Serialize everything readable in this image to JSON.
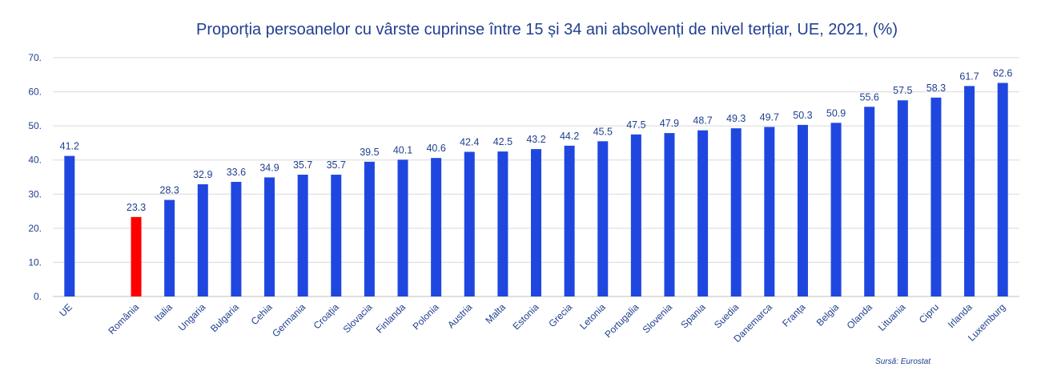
{
  "chart_data": {
    "type": "bar",
    "title": "Proporția persoanelor cu vârste cuprinse între 15 și 34 ani absolvenți de nivel terțiar, UE, 2021, (%)",
    "source": "Sursă: Eurostat",
    "ylim": [
      0,
      70
    ],
    "yticks": [
      "0.",
      "10.",
      "20.",
      "30.",
      "40.",
      "50.",
      "60.",
      "70."
    ],
    "grid": true,
    "categories": [
      "UE",
      "",
      "România",
      "Italia",
      "Ungaria",
      "Bulgaria",
      "Cehia",
      "Germania",
      "Croația",
      "Slovacia",
      "Finlanda",
      "Polonia",
      "Austria",
      "Malta",
      "Estonia",
      "Grecia",
      "Letonia",
      "Portugalia",
      "Slovenia",
      "Spania",
      "Suedia",
      "Danemarca",
      "Franța",
      "Belgia",
      "Olanda",
      "Lituania",
      "Cipru",
      "Irlanda",
      "Luxemburg"
    ],
    "values": [
      41.2,
      null,
      23.3,
      28.3,
      32.9,
      33.6,
      34.9,
      35.7,
      35.7,
      39.5,
      40.1,
      40.6,
      42.4,
      42.5,
      43.2,
      44.2,
      45.5,
      47.5,
      47.9,
      48.7,
      49.3,
      49.7,
      50.3,
      50.9,
      55.6,
      57.5,
      58.3,
      61.7,
      62.6
    ],
    "value_labels": [
      "41.2",
      "",
      "23.3",
      "28.3",
      "32.9",
      "33.6",
      "34.9",
      "35.7",
      "35.7",
      "39.5",
      "40.1",
      "40.6",
      "42.4",
      "42.5",
      "43.2",
      "44.2",
      "45.5",
      "47.5",
      "47.9",
      "48.7",
      "49.3",
      "49.7",
      "50.3",
      "50.9",
      "55.6",
      "57.5",
      "58.3",
      "61.7",
      "62.6"
    ],
    "colors": {
      "default": "#1f47e0",
      "highlight": "#ff0000"
    },
    "highlight_category": "România"
  }
}
